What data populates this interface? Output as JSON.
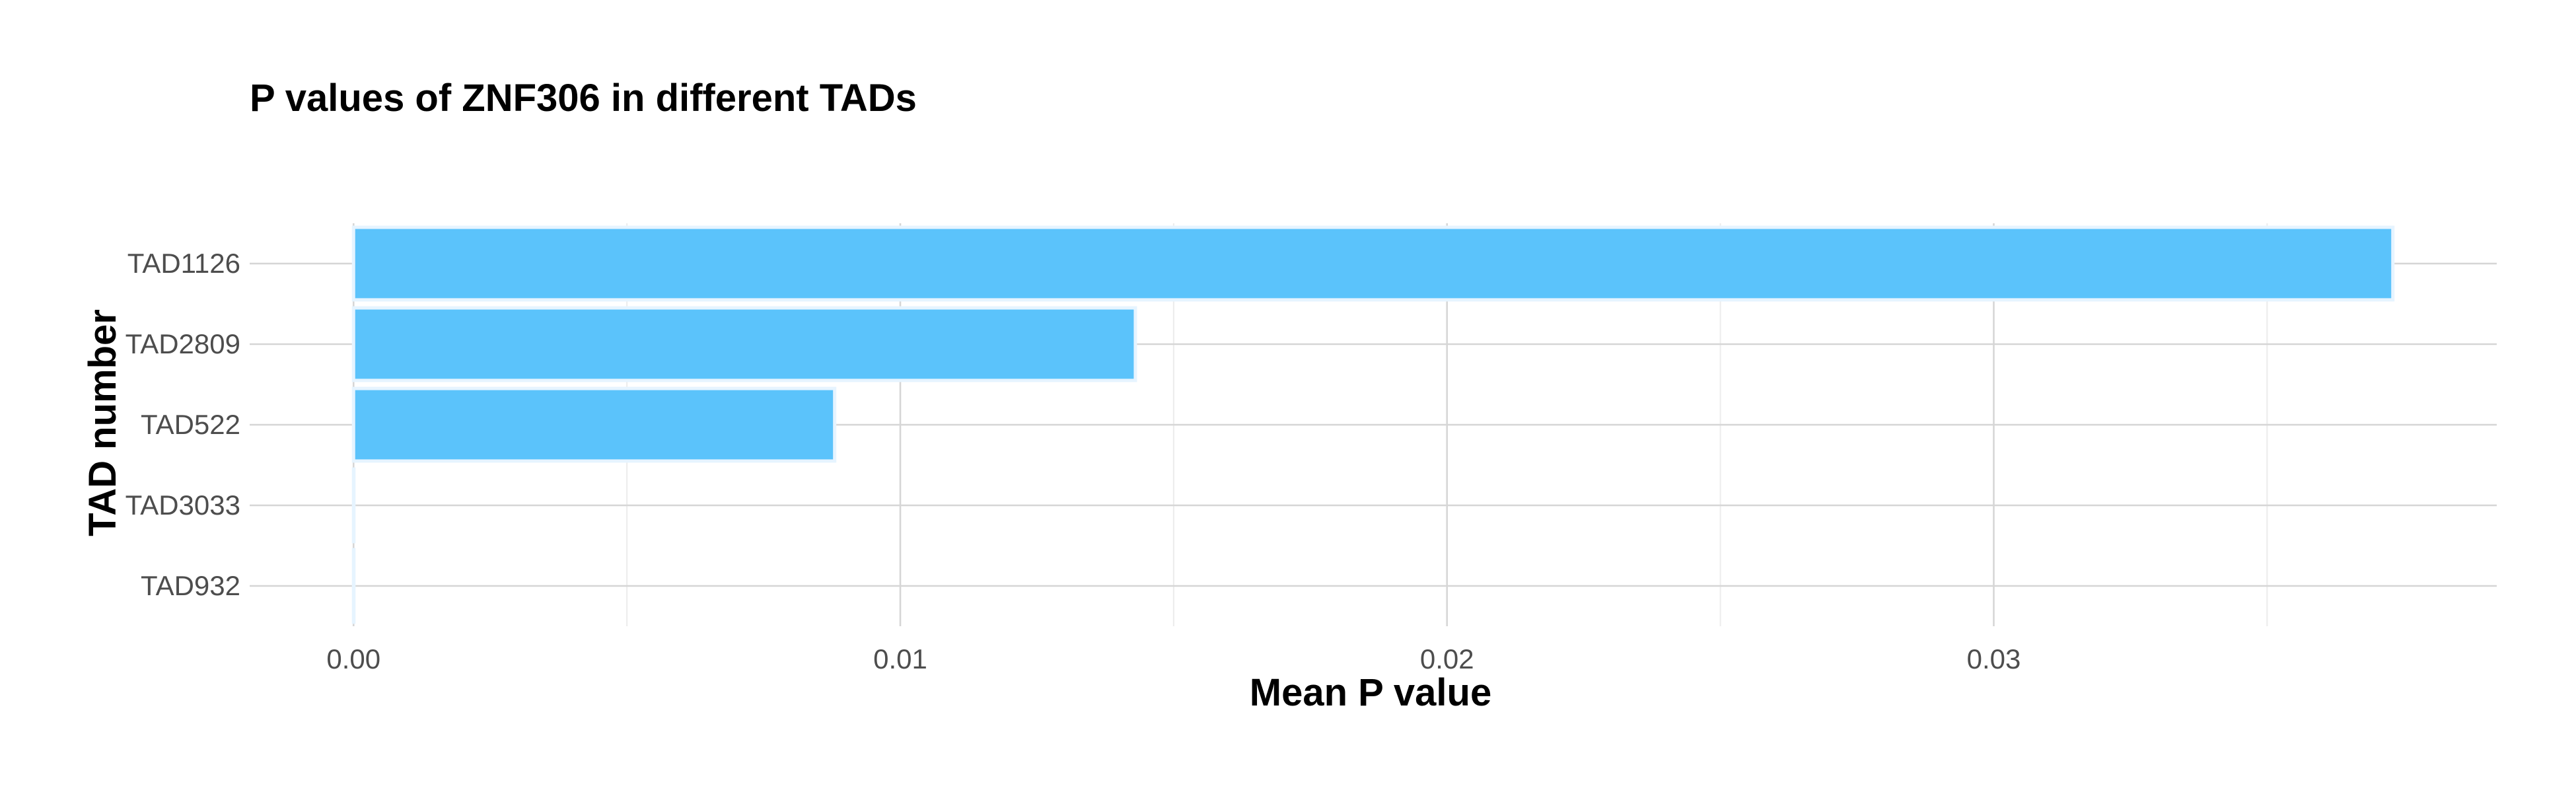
{
  "chart_data": {
    "type": "bar",
    "orientation": "horizontal",
    "title": "P values of ZNF306 in different TADs",
    "xlabel": "Mean P value",
    "ylabel": "TAD number",
    "categories": [
      "TAD1126",
      "TAD2809",
      "TAD522",
      "TAD3033",
      "TAD932"
    ],
    "values": [
      0.0373,
      0.0143,
      0.0088,
      0.0,
      0.0
    ],
    "xlim": [
      -0.0019,
      0.0392
    ],
    "xticks": [
      0.0,
      0.01,
      0.02,
      0.03
    ],
    "xtick_labels": [
      "0.00",
      "0.01",
      "0.02",
      "0.03"
    ],
    "grid": true,
    "bar_color": "#5bc3fb",
    "bar_outline_color": "#e6f4ff"
  }
}
